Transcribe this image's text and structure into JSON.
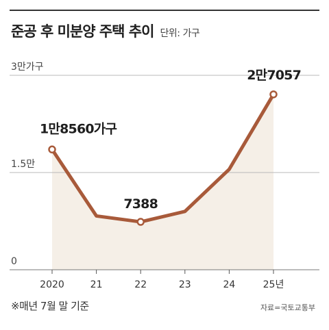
{
  "header": {
    "title": "준공 후 미분양 주택 추이",
    "unit": "단위: 가구"
  },
  "footer": {
    "note": "※매년 7월 말 기준",
    "source": "자료=국토교통부"
  },
  "colors": {
    "line": "#a85a3a",
    "area": "#f5efe7",
    "grid": "#b9b9b9"
  },
  "chart_data": {
    "type": "line",
    "title": "준공 후 미분양 주택 추이",
    "xlabel": "",
    "ylabel": "",
    "categories": [
      "2020",
      "21",
      "22",
      "23",
      "24",
      "25년"
    ],
    "series": [
      {
        "values": [
          18560,
          8300,
          7388,
          9000,
          15500,
          27057
        ]
      }
    ],
    "ylim": [
      0,
      30000
    ],
    "yticks": [
      {
        "value": 0,
        "label": "0"
      },
      {
        "value": 15000,
        "label": "1.5만"
      },
      {
        "value": 30000,
        "label": "3만가구"
      }
    ],
    "labeled_points": [
      {
        "index": 0,
        "label": "1만8560가구"
      },
      {
        "index": 2,
        "label": "7388"
      },
      {
        "index": 5,
        "label": "2만7057"
      }
    ],
    "grid": true,
    "legend": "none"
  }
}
